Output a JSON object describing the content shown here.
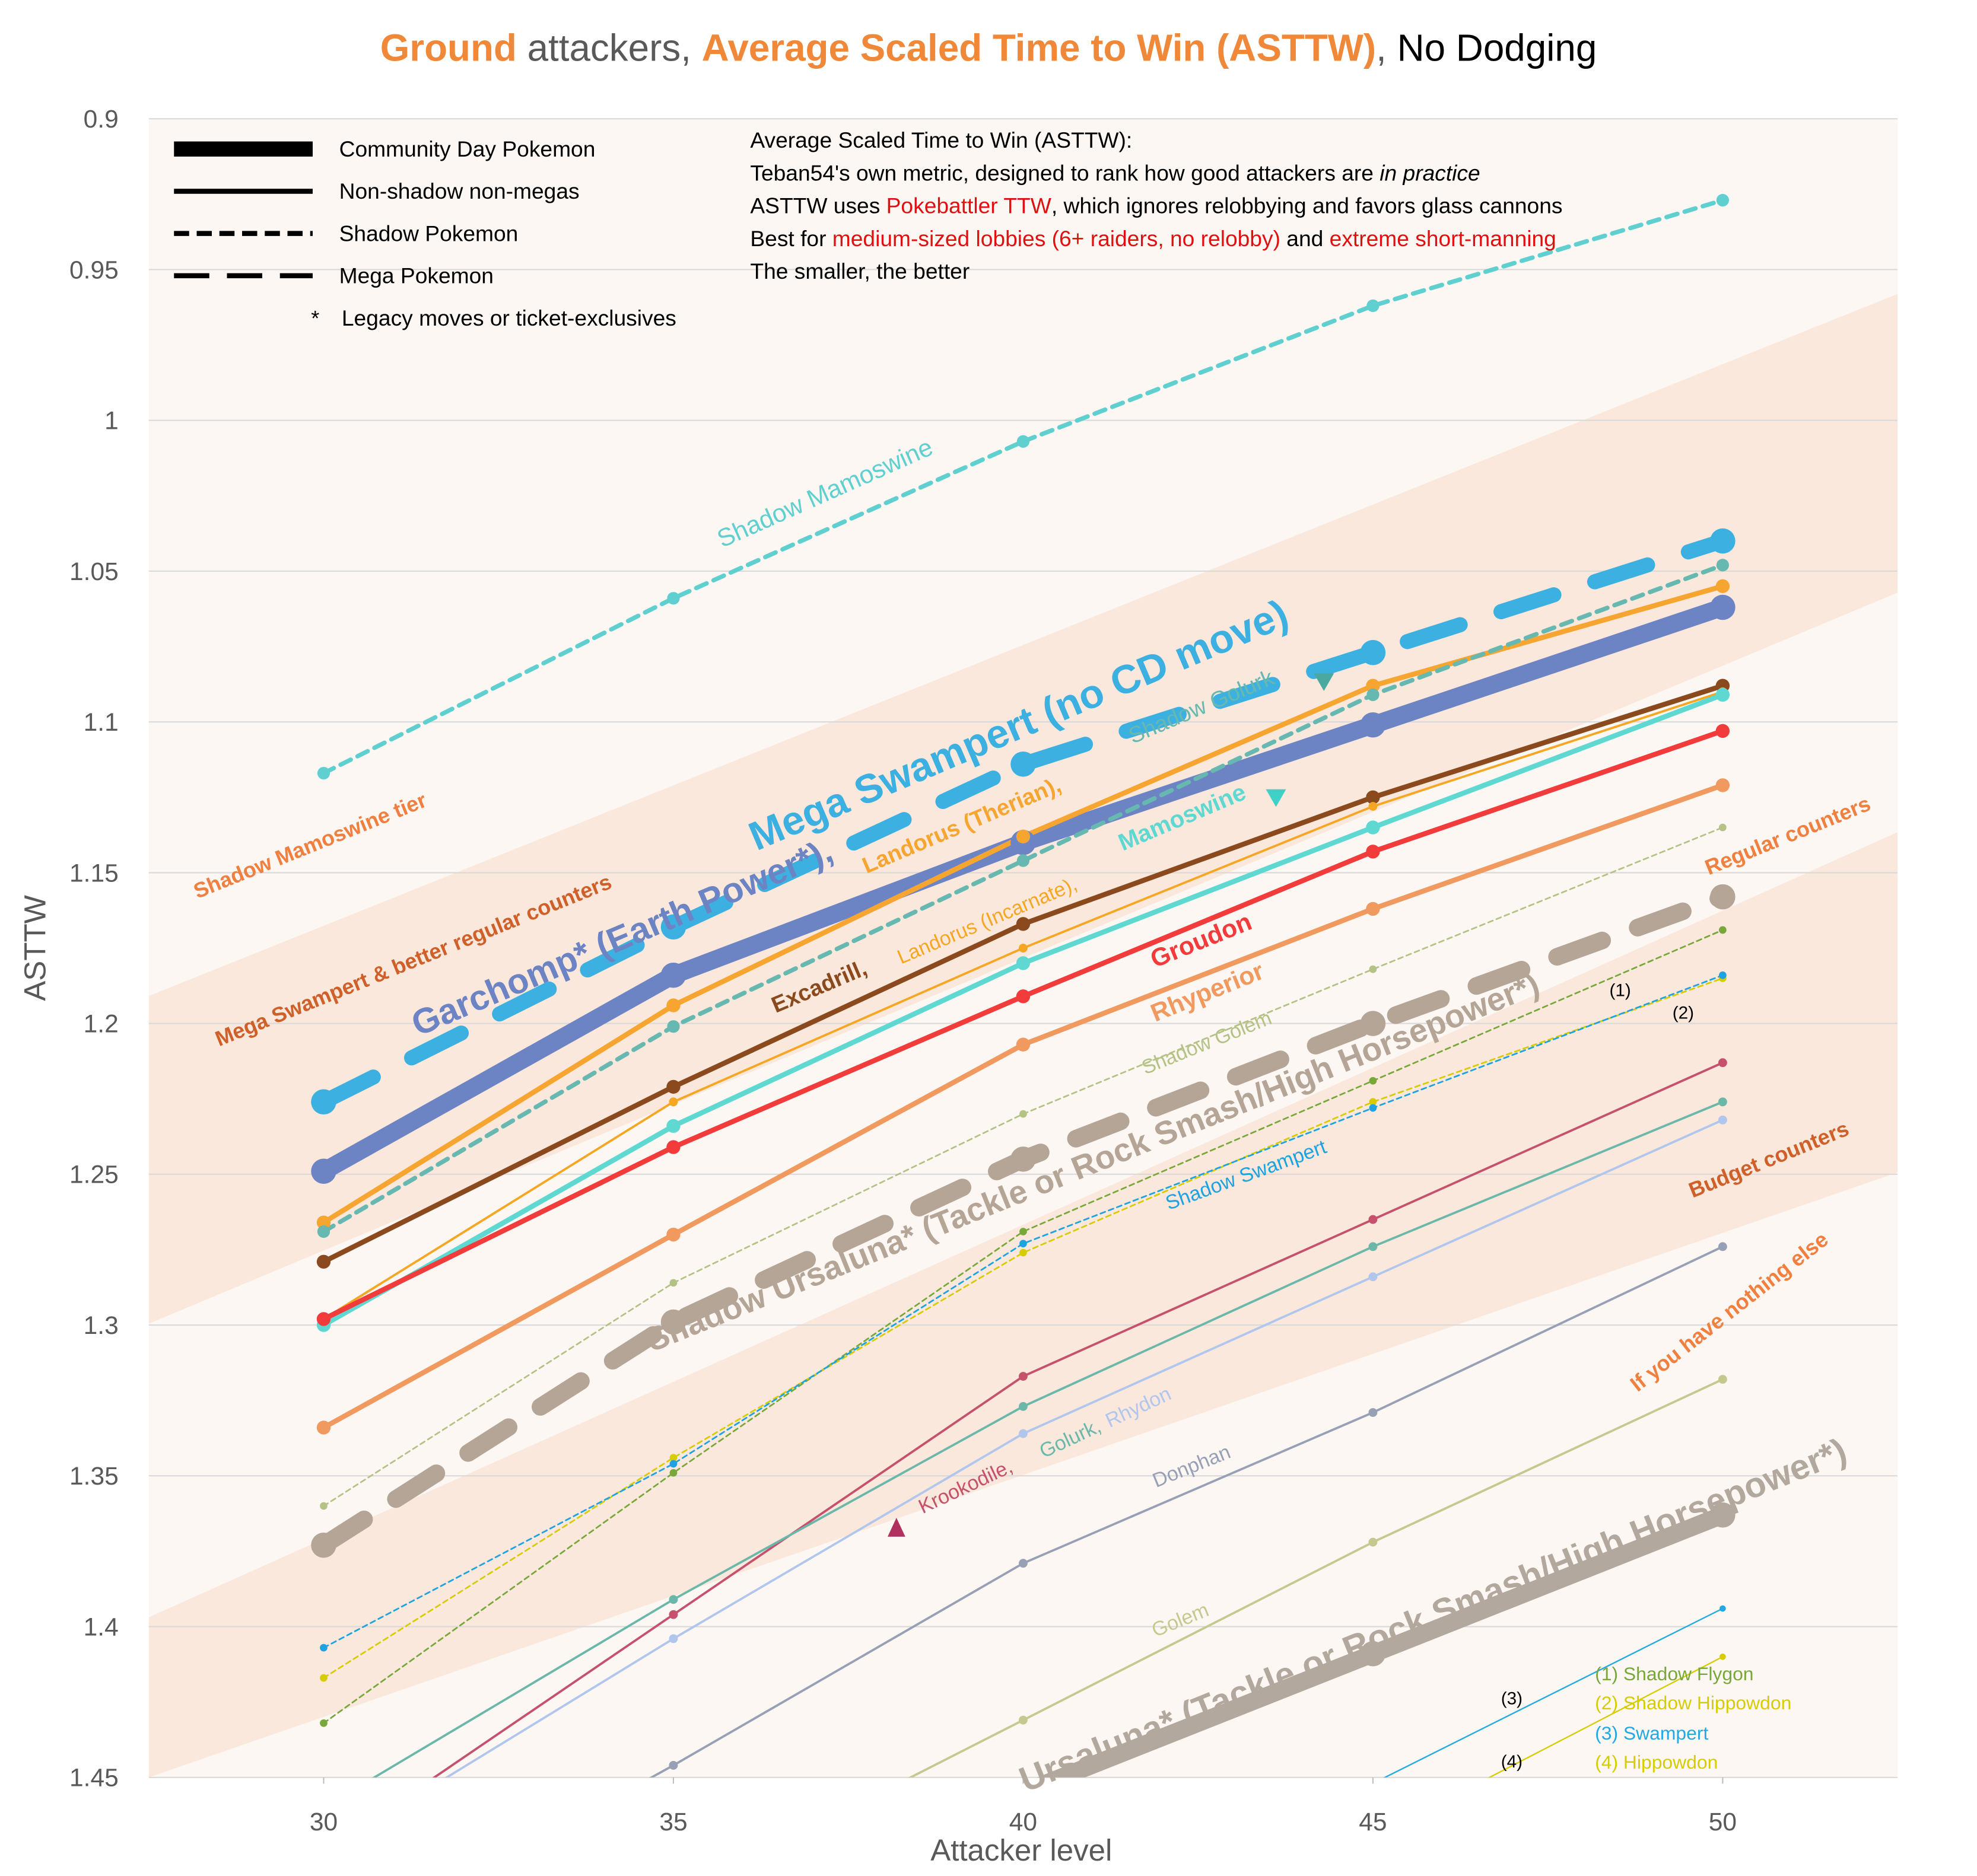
{
  "chart_data": {
    "type": "line",
    "title": [
      {
        "text": "Ground",
        "color": "#f0883a",
        "bold": true
      },
      {
        "text": " attackers, ",
        "color": "#595959",
        "bold": false
      },
      {
        "text": "Average Scaled Time to Win (ASTTW)",
        "color": "#f0883a",
        "bold": true
      },
      {
        "text": ", ",
        "color": "#595959",
        "bold": false
      },
      {
        "text": "No Dodging",
        "color": "#000000",
        "bold": false
      }
    ],
    "x_label": "Attacker level",
    "y_label": "ASTTW",
    "x": [
      30,
      35,
      40,
      45,
      50
    ],
    "xlim": [
      27.5,
      52.5
    ],
    "xticks": [
      30,
      35,
      40,
      45,
      50
    ],
    "ylim": [
      0.9,
      1.45
    ],
    "y_reversed": true,
    "yticks": [
      0.9,
      0.95,
      1,
      1.05,
      1.1,
      1.15,
      1.2,
      1.25,
      1.3,
      1.35,
      1.4,
      1.45
    ],
    "grid": true,
    "style_legend": [
      {
        "style": "cd",
        "label": "Community Day Pokemon"
      },
      {
        "style": "main",
        "label": "Non-shadow non-megas"
      },
      {
        "style": "shadow-legend",
        "label": "Shadow Pokemon"
      },
      {
        "style": "mega-legend",
        "label": "Mega Pokemon"
      },
      {
        "symbol": "*",
        "label": "Legacy moves or ticket-exclusives"
      }
    ],
    "notes": [
      [
        {
          "text": "Average Scaled Time to Win (ASTTW):",
          "color": "#000000"
        }
      ],
      [
        {
          "text": "Teban54's own metric, designed to rank how good attackers are ",
          "color": "#000000"
        },
        {
          "text": "in practice",
          "color": "#000000",
          "italic": true
        }
      ],
      [
        {
          "text": "ASTTW uses ",
          "color": "#000000"
        },
        {
          "text": "Pokebattler TTW",
          "color": "#e01010"
        },
        {
          "text": ", which ignores relobbying and favors glass cannons",
          "color": "#000000"
        }
      ],
      [
        {
          "text": "Best for ",
          "color": "#000000"
        },
        {
          "text": "medium-sized lobbies (6+ raiders, no relobby)",
          "color": "#e01010"
        },
        {
          "text": " and ",
          "color": "#000000"
        },
        {
          "text": "extreme short-manning",
          "color": "#e01010"
        }
      ],
      [
        {
          "text": "The smaller, the better",
          "color": "#000000"
        }
      ]
    ],
    "annotations": [
      {
        "text": "Shadow Mamoswine tier",
        "color": "#f08040"
      },
      {
        "text": "Mega Swampert & better regular counters",
        "color": "#d0602a"
      },
      {
        "text": "Regular counters",
        "color": "#f08040"
      },
      {
        "text": "Budget counters",
        "color": "#d0602a"
      },
      {
        "text": "If you have nothing else",
        "color": "#f08040"
      }
    ],
    "series": [
      {
        "name": "Shadow Mamoswine",
        "style": "shadow-main",
        "color": "#5fcfcf",
        "values": [
          1.117,
          1.059,
          1.007,
          0.962,
          0.927
        ]
      },
      {
        "name": "Mega Swampert (no CD move)",
        "style": "mega",
        "color": "#3cb0e0",
        "values": [
          1.226,
          1.168,
          1.114,
          1.077,
          1.04
        ]
      },
      {
        "name": "Garchomp* (Earth Power*),",
        "style": "cd",
        "color": "#6d84c4",
        "values": [
          1.249,
          1.184,
          1.14,
          1.101,
          1.062
        ]
      },
      {
        "name": "Landorus (Therian),",
        "style": "main",
        "color": "#f7a531",
        "values": [
          1.266,
          1.194,
          1.138,
          1.088,
          1.055
        ]
      },
      {
        "name": "Shadow Golurk",
        "style": "shadow-main",
        "color": "#66b8b0",
        "values": [
          1.269,
          1.201,
          1.146,
          1.091,
          1.048
        ]
      },
      {
        "name": "Excadrill,",
        "style": "main",
        "color": "#8b4a1e",
        "values": [
          1.279,
          1.221,
          1.167,
          1.125,
          1.088
        ]
      },
      {
        "name": "Landorus (Incarnate),",
        "style": "minor",
        "color": "#f5a623",
        "values": [
          1.298,
          1.226,
          1.175,
          1.128,
          1.09
        ]
      },
      {
        "name": "Mamoswine",
        "style": "main",
        "color": "#5fd8d2",
        "values": [
          1.3,
          1.234,
          1.18,
          1.135,
          1.091
        ]
      },
      {
        "name": "Groudon",
        "style": "main",
        "color": "#f23b3b",
        "values": [
          1.298,
          1.241,
          1.191,
          1.143,
          1.103
        ]
      },
      {
        "name": "Rhyperior",
        "style": "main",
        "color": "#f09a60",
        "values": [
          1.334,
          1.27,
          1.207,
          1.162,
          1.121
        ]
      },
      {
        "name": "Shadow Golem",
        "style": "shadow-minor",
        "color": "#b5c286",
        "values": [
          1.36,
          1.286,
          1.23,
          1.182,
          1.135
        ]
      },
      {
        "name": "Shadow Ursaluna* (Tackle or Rock Smash/High Horsepower*)",
        "style": "shadow-cd",
        "color": "#b5a597",
        "values": [
          1.373,
          1.299,
          1.245,
          1.2,
          1.158
        ]
      },
      {
        "name": "(1) Shadow Flygon",
        "marker_label": "(1)",
        "style": "shadow-minor",
        "color": "#78a83a",
        "values": [
          1.432,
          1.349,
          1.269,
          1.219,
          1.169
        ]
      },
      {
        "name": "(2) Shadow Hippowdon",
        "marker_label": "(2)",
        "style": "shadow-minor",
        "color": "#d6cc00",
        "values": [
          1.417,
          1.344,
          1.276,
          1.226,
          1.185
        ]
      },
      {
        "name": "Shadow Swampert",
        "style": "shadow-minor",
        "color": "#1fa2e0",
        "values": [
          1.407,
          1.346,
          1.273,
          1.228,
          1.184
        ]
      },
      {
        "name": "Krookodile,",
        "style": "minor",
        "color": "#c5516d",
        "values": [
          1.475,
          1.396,
          1.317,
          1.265,
          1.213
        ]
      },
      {
        "name": "Golurk,",
        "style": "minor",
        "color": "#6bb8aa",
        "values": [
          1.46,
          1.391,
          1.327,
          1.274,
          1.226
        ]
      },
      {
        "name": "Rhydon",
        "style": "minor",
        "color": "#b0c6ec",
        "values": [
          1.475,
          1.404,
          1.336,
          1.284,
          1.232
        ]
      },
      {
        "name": "Donphan",
        "style": "minor",
        "color": "#98a0b6",
        "values": [
          1.51,
          1.446,
          1.379,
          1.329,
          1.274
        ]
      },
      {
        "name": "Golem",
        "style": "minor",
        "color": "#c5c98f",
        "values": [
          null,
          1.49,
          1.431,
          1.372,
          1.318
        ]
      },
      {
        "name": "Ursaluna* (Tackle or Rock Smash/High Horsepower*)",
        "style": "cd",
        "color": "#b3a89e",
        "values": [
          null,
          null,
          1.455,
          1.409,
          1.363
        ]
      },
      {
        "name": "(3) Swampert",
        "marker_label": "(3)",
        "style": "thin",
        "color": "#22a8e2",
        "values": [
          null,
          null,
          null,
          1.452,
          1.394
        ]
      },
      {
        "name": "(4) Hippowdon",
        "marker_label": "(4)",
        "style": "thin",
        "color": "#d6cc00",
        "values": [
          null,
          null,
          null,
          1.47,
          1.41
        ]
      }
    ]
  }
}
